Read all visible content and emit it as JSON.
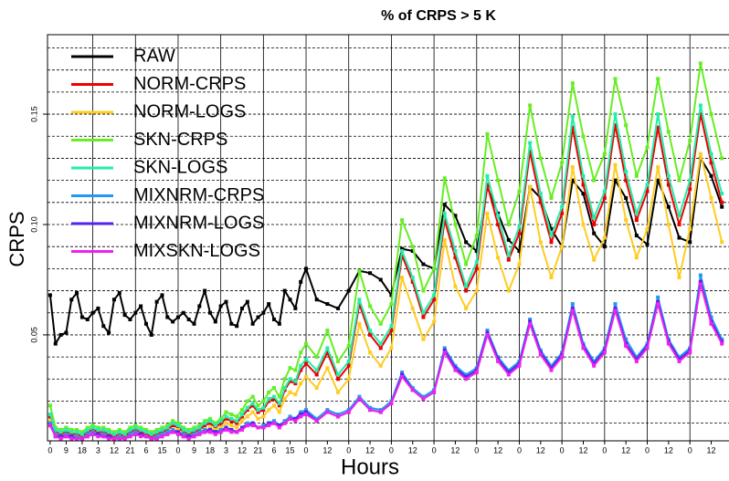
{
  "chart_data": {
    "type": "line",
    "title": "% of CRPS > 5 K",
    "xlabel": "Hours",
    "ylabel": "CRPS",
    "legend": "topleft",
    "x": [
      0,
      3,
      6,
      9,
      12,
      15,
      18,
      21,
      24,
      27,
      30,
      33,
      36,
      39,
      42,
      45,
      48,
      51,
      54,
      57,
      60,
      63,
      66,
      69,
      72,
      75,
      78,
      81,
      84,
      87,
      90,
      93,
      96,
      99,
      102,
      105,
      108,
      111,
      114,
      117,
      120,
      123,
      126,
      129,
      132,
      135,
      138,
      141,
      144,
      150,
      156,
      162,
      168,
      174,
      180,
      186,
      192,
      198,
      204,
      210,
      216,
      222,
      228,
      234,
      240,
      246,
      252,
      258,
      264,
      270,
      276,
      282,
      288,
      294,
      300,
      306,
      312,
      318,
      324,
      330,
      336,
      342,
      348,
      354,
      360,
      366,
      372,
      378
    ],
    "xlim": [
      -1.5,
      382
    ],
    "xticks": [
      0,
      9,
      18,
      {
        "value": 27,
        "label": "3"
      },
      {
        "value": 36,
        "label": "12"
      },
      {
        "value": 45,
        "label": "21"
      },
      {
        "value": 54,
        "label": "6"
      },
      {
        "value": 63,
        "label": "15"
      },
      {
        "value": 72,
        "label": "0"
      },
      {
        "value": 81,
        "label": "9"
      },
      {
        "value": 90,
        "label": "18"
      },
      {
        "value": 99,
        "label": "3"
      },
      {
        "value": 108,
        "label": "12"
      },
      {
        "value": 117,
        "label": "21"
      },
      {
        "value": 126,
        "label": "6"
      },
      {
        "value": 135,
        "label": "15"
      },
      {
        "value": 144,
        "label": "0"
      },
      {
        "value": 156,
        "label": "12"
      },
      {
        "value": 168,
        "label": "0"
      },
      {
        "value": 180,
        "label": "12"
      },
      {
        "value": 192,
        "label": "0"
      },
      {
        "value": 204,
        "label": "12"
      },
      {
        "value": 216,
        "label": "0"
      },
      {
        "value": 228,
        "label": "12"
      },
      {
        "value": 240,
        "label": "0"
      },
      {
        "value": 252,
        "label": "12"
      },
      {
        "value": 264,
        "label": "0"
      },
      {
        "value": 276,
        "label": "12"
      },
      {
        "value": 288,
        "label": "0"
      },
      {
        "value": 300,
        "label": "12"
      },
      {
        "value": 312,
        "label": "0"
      },
      {
        "value": 324,
        "label": "12"
      },
      {
        "value": 336,
        "label": "0"
      },
      {
        "value": 348,
        "label": "12"
      },
      {
        "value": 360,
        "label": "0"
      },
      {
        "value": 372,
        "label": "12"
      }
    ],
    "xgrid": [
      24,
      48,
      72,
      96,
      120,
      144,
      168,
      192,
      216,
      240,
      264,
      288,
      312,
      336,
      360
    ],
    "ylim": [
      0.002,
      0.186
    ],
    "yticks": [
      0.05,
      {
        "value": 0.1,
        "label": "0.10"
      },
      0.15
    ],
    "ygrid": [
      0.01,
      0.02,
      0.03,
      0.04,
      0.05,
      0.06,
      0.07,
      0.08,
      0.09,
      0.1,
      0.11,
      0.12,
      0.13,
      0.14,
      0.15,
      0.16,
      0.17,
      0.18
    ],
    "series": [
      {
        "name": "RAW",
        "color": "#000000",
        "values": [
          0.068,
          0.046,
          0.05,
          0.051,
          0.066,
          0.069,
          0.058,
          0.057,
          0.06,
          0.062,
          0.054,
          0.051,
          0.066,
          0.069,
          0.059,
          0.057,
          0.06,
          0.063,
          0.055,
          0.05,
          0.065,
          0.068,
          0.058,
          0.056,
          0.058,
          0.06,
          0.057,
          0.055,
          0.063,
          0.07,
          0.06,
          0.056,
          0.063,
          0.065,
          0.055,
          0.054,
          0.062,
          0.065,
          0.055,
          0.058,
          0.06,
          0.064,
          0.057,
          0.055,
          0.07,
          0.066,
          0.062,
          0.074,
          0.08,
          0.066,
          0.064,
          0.062,
          0.07,
          0.079,
          0.078,
          0.075,
          0.068,
          0.089,
          0.088,
          0.082,
          0.08,
          0.109,
          0.104,
          0.092,
          0.088,
          0.117,
          0.105,
          0.093,
          0.088,
          0.117,
          0.112,
          0.098,
          0.09,
          0.12,
          0.114,
          0.096,
          0.09,
          0.12,
          0.112,
          0.095,
          0.091,
          0.12,
          0.108,
          0.094,
          0.092,
          0.13,
          0.122,
          0.108
        ]
      },
      {
        "name": "NORM-CRPS",
        "color": "#ee0000",
        "values": [
          0.013,
          0.006,
          0.005,
          0.006,
          0.005,
          0.005,
          0.004,
          0.006,
          0.007,
          0.006,
          0.006,
          0.005,
          0.004,
          0.005,
          0.004,
          0.006,
          0.007,
          0.006,
          0.005,
          0.004,
          0.005,
          0.006,
          0.007,
          0.009,
          0.008,
          0.006,
          0.005,
          0.006,
          0.007,
          0.009,
          0.01,
          0.008,
          0.01,
          0.012,
          0.011,
          0.01,
          0.013,
          0.016,
          0.018,
          0.015,
          0.016,
          0.02,
          0.021,
          0.018,
          0.025,
          0.029,
          0.028,
          0.034,
          0.037,
          0.032,
          0.042,
          0.03,
          0.036,
          0.064,
          0.05,
          0.044,
          0.052,
          0.086,
          0.074,
          0.058,
          0.066,
          0.102,
          0.085,
          0.07,
          0.08,
          0.118,
          0.1,
          0.084,
          0.096,
          0.133,
          0.11,
          0.092,
          0.105,
          0.144,
          0.118,
          0.1,
          0.112,
          0.145,
          0.12,
          0.102,
          0.115,
          0.144,
          0.118,
          0.1,
          0.116,
          0.15,
          0.128,
          0.11
        ]
      },
      {
        "name": "NORM-LOGS",
        "color": "#ffcc22",
        "values": [
          0.011,
          0.005,
          0.004,
          0.005,
          0.004,
          0.004,
          0.003,
          0.005,
          0.006,
          0.005,
          0.005,
          0.004,
          0.003,
          0.004,
          0.003,
          0.005,
          0.006,
          0.005,
          0.004,
          0.003,
          0.004,
          0.005,
          0.006,
          0.007,
          0.007,
          0.005,
          0.004,
          0.005,
          0.006,
          0.007,
          0.008,
          0.007,
          0.008,
          0.01,
          0.009,
          0.008,
          0.011,
          0.013,
          0.015,
          0.012,
          0.013,
          0.016,
          0.018,
          0.015,
          0.021,
          0.024,
          0.023,
          0.028,
          0.031,
          0.026,
          0.035,
          0.024,
          0.03,
          0.055,
          0.042,
          0.036,
          0.044,
          0.076,
          0.062,
          0.048,
          0.056,
          0.093,
          0.072,
          0.062,
          0.07,
          0.105,
          0.085,
          0.07,
          0.082,
          0.117,
          0.092,
          0.076,
          0.09,
          0.126,
          0.1,
          0.084,
          0.094,
          0.127,
          0.102,
          0.085,
          0.098,
          0.126,
          0.1,
          0.076,
          0.098,
          0.132,
          0.112,
          0.092
        ]
      },
      {
        "name": "SKN-CRPS",
        "color": "#66ee22",
        "values": [
          0.018,
          0.008,
          0.007,
          0.008,
          0.007,
          0.007,
          0.006,
          0.008,
          0.009,
          0.008,
          0.008,
          0.007,
          0.006,
          0.007,
          0.006,
          0.008,
          0.009,
          0.008,
          0.007,
          0.006,
          0.007,
          0.008,
          0.009,
          0.011,
          0.01,
          0.008,
          0.007,
          0.008,
          0.009,
          0.011,
          0.012,
          0.01,
          0.012,
          0.015,
          0.014,
          0.013,
          0.016,
          0.02,
          0.022,
          0.018,
          0.02,
          0.024,
          0.026,
          0.022,
          0.03,
          0.035,
          0.034,
          0.042,
          0.046,
          0.04,
          0.052,
          0.038,
          0.045,
          0.079,
          0.063,
          0.055,
          0.064,
          0.102,
          0.09,
          0.07,
          0.08,
          0.121,
          0.1,
          0.082,
          0.095,
          0.141,
          0.12,
          0.1,
          0.115,
          0.154,
          0.13,
          0.112,
          0.128,
          0.164,
          0.14,
          0.12,
          0.132,
          0.166,
          0.145,
          0.122,
          0.135,
          0.166,
          0.142,
          0.12,
          0.138,
          0.173,
          0.15,
          0.13
        ]
      },
      {
        "name": "SKN-LOGS",
        "color": "#22eeaa",
        "values": [
          0.014,
          0.007,
          0.006,
          0.007,
          0.006,
          0.006,
          0.005,
          0.007,
          0.008,
          0.007,
          0.007,
          0.006,
          0.005,
          0.006,
          0.005,
          0.007,
          0.008,
          0.007,
          0.006,
          0.005,
          0.006,
          0.007,
          0.008,
          0.01,
          0.009,
          0.007,
          0.006,
          0.007,
          0.008,
          0.01,
          0.011,
          0.009,
          0.011,
          0.013,
          0.012,
          0.011,
          0.014,
          0.017,
          0.019,
          0.016,
          0.017,
          0.021,
          0.022,
          0.019,
          0.026,
          0.03,
          0.029,
          0.036,
          0.039,
          0.034,
          0.044,
          0.032,
          0.038,
          0.066,
          0.052,
          0.046,
          0.054,
          0.088,
          0.076,
          0.06,
          0.068,
          0.105,
          0.088,
          0.072,
          0.083,
          0.122,
          0.104,
          0.086,
          0.099,
          0.137,
          0.114,
          0.095,
          0.108,
          0.149,
          0.122,
          0.103,
          0.115,
          0.15,
          0.124,
          0.105,
          0.118,
          0.15,
          0.122,
          0.104,
          0.12,
          0.154,
          0.132,
          0.114
        ]
      },
      {
        "name": "MIXNRM-CRPS",
        "color": "#2299ee",
        "values": [
          0.01,
          0.005,
          0.004,
          0.005,
          0.004,
          0.004,
          0.003,
          0.005,
          0.006,
          0.005,
          0.005,
          0.004,
          0.003,
          0.004,
          0.003,
          0.005,
          0.006,
          0.005,
          0.004,
          0.003,
          0.004,
          0.005,
          0.006,
          0.007,
          0.006,
          0.005,
          0.004,
          0.005,
          0.006,
          0.007,
          0.007,
          0.006,
          0.007,
          0.008,
          0.007,
          0.006,
          0.008,
          0.01,
          0.01,
          0.008,
          0.009,
          0.01,
          0.011,
          0.009,
          0.011,
          0.013,
          0.012,
          0.015,
          0.016,
          0.012,
          0.016,
          0.014,
          0.016,
          0.022,
          0.017,
          0.016,
          0.02,
          0.033,
          0.026,
          0.022,
          0.025,
          0.044,
          0.036,
          0.032,
          0.035,
          0.052,
          0.04,
          0.034,
          0.038,
          0.057,
          0.043,
          0.036,
          0.042,
          0.064,
          0.046,
          0.038,
          0.044,
          0.064,
          0.048,
          0.04,
          0.046,
          0.067,
          0.048,
          0.04,
          0.044,
          0.077,
          0.058,
          0.048
        ]
      },
      {
        "name": "MIXNRM-LOGS",
        "color": "#5522ee",
        "values": [
          0.009,
          0.004,
          0.004,
          0.004,
          0.004,
          0.003,
          0.003,
          0.004,
          0.005,
          0.005,
          0.004,
          0.004,
          0.003,
          0.003,
          0.003,
          0.004,
          0.005,
          0.005,
          0.004,
          0.003,
          0.003,
          0.004,
          0.005,
          0.006,
          0.006,
          0.004,
          0.004,
          0.004,
          0.005,
          0.006,
          0.007,
          0.006,
          0.006,
          0.008,
          0.007,
          0.006,
          0.008,
          0.009,
          0.01,
          0.008,
          0.008,
          0.01,
          0.01,
          0.009,
          0.01,
          0.012,
          0.012,
          0.014,
          0.015,
          0.011,
          0.015,
          0.013,
          0.015,
          0.021,
          0.016,
          0.015,
          0.019,
          0.032,
          0.025,
          0.021,
          0.024,
          0.043,
          0.035,
          0.031,
          0.034,
          0.051,
          0.039,
          0.033,
          0.037,
          0.056,
          0.042,
          0.035,
          0.041,
          0.062,
          0.045,
          0.037,
          0.043,
          0.062,
          0.046,
          0.039,
          0.045,
          0.065,
          0.047,
          0.039,
          0.043,
          0.074,
          0.056,
          0.047
        ]
      },
      {
        "name": "MIXSKN-LOGS",
        "color": "#ee22ee",
        "values": [
          0.009,
          0.004,
          0.003,
          0.004,
          0.003,
          0.003,
          0.003,
          0.004,
          0.005,
          0.004,
          0.004,
          0.003,
          0.003,
          0.003,
          0.003,
          0.004,
          0.005,
          0.004,
          0.004,
          0.003,
          0.003,
          0.004,
          0.005,
          0.006,
          0.005,
          0.004,
          0.003,
          0.004,
          0.005,
          0.006,
          0.006,
          0.005,
          0.006,
          0.007,
          0.006,
          0.006,
          0.007,
          0.009,
          0.009,
          0.008,
          0.008,
          0.009,
          0.01,
          0.008,
          0.01,
          0.012,
          0.011,
          0.013,
          0.014,
          0.011,
          0.015,
          0.013,
          0.015,
          0.021,
          0.016,
          0.015,
          0.019,
          0.031,
          0.025,
          0.021,
          0.024,
          0.042,
          0.034,
          0.03,
          0.033,
          0.05,
          0.038,
          0.032,
          0.036,
          0.055,
          0.041,
          0.034,
          0.04,
          0.061,
          0.044,
          0.036,
          0.042,
          0.061,
          0.045,
          0.038,
          0.044,
          0.064,
          0.046,
          0.038,
          0.042,
          0.073,
          0.055,
          0.046
        ]
      }
    ]
  }
}
